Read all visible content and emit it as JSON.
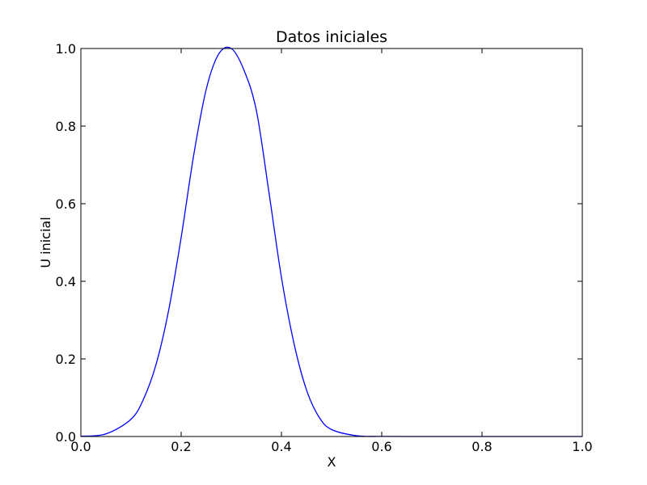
{
  "chart_data": {
    "type": "line",
    "title": "Datos iniciales",
    "xlabel": "X",
    "ylabel": "U inicial",
    "xlim": [
      0.0,
      1.0
    ],
    "ylim": [
      0.0,
      1.0
    ],
    "x_ticks": [
      "0.0",
      "0.2",
      "0.4",
      "0.6",
      "0.8",
      "1.0"
    ],
    "y_ticks": [
      "0.0",
      "0.2",
      "0.4",
      "0.6",
      "0.8",
      "1.0"
    ],
    "grid": false,
    "series": [
      {
        "color": "#0000ff",
        "x": [
          0.0,
          0.05,
          0.1,
          0.125,
          0.15,
          0.175,
          0.2,
          0.225,
          0.25,
          0.275,
          0.3,
          0.325,
          0.35,
          0.375,
          0.4,
          0.425,
          0.45,
          0.475,
          0.5,
          0.55,
          0.6,
          0.7,
          0.8,
          0.9,
          1.0
        ],
        "y": [
          0.0007,
          0.0067,
          0.0446,
          0.0965,
          0.186,
          0.325,
          0.513,
          0.725,
          0.895,
          0.986,
          1.0,
          0.945,
          0.84,
          0.63,
          0.41,
          0.24,
          0.12,
          0.05,
          0.018,
          0.002,
          0.0002,
          0.0,
          0.0,
          0.0,
          0.0
        ]
      }
    ]
  }
}
